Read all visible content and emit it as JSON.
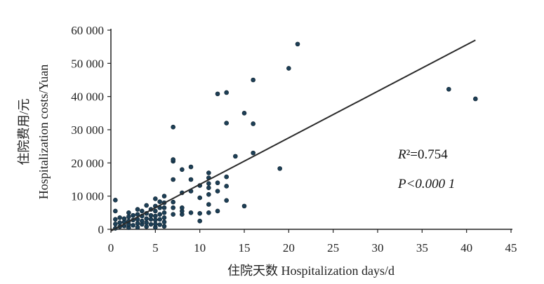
{
  "chart_data": {
    "type": "scatter",
    "title": "",
    "xlabel": "住院天数 Hospitalization days/d",
    "ylabel_cn": "住院费用/元",
    "ylabel_en": "Hospitalization costs/Yuan",
    "xlim": [
      0,
      45
    ],
    "ylim": [
      0,
      60000
    ],
    "x_ticks": [
      0,
      5,
      10,
      15,
      20,
      25,
      30,
      35,
      40,
      45
    ],
    "y_ticks": [
      0,
      10000,
      20000,
      30000,
      40000,
      50000,
      60000
    ],
    "x_tick_labels": [
      "0",
      "5",
      "10",
      "15",
      "20",
      "25",
      "30",
      "35",
      "40",
      "45"
    ],
    "y_tick_labels": [
      "0",
      "10 000",
      "20 000",
      "30 000",
      "40 000",
      "50 000",
      "60 000"
    ],
    "grid": false,
    "annotations": {
      "r2_label": "R²=0.754",
      "p_label": "P<0.000 1"
    },
    "fit_line": {
      "x": [
        0,
        41
      ],
      "y": [
        -500,
        57000
      ]
    },
    "points": [
      [
        0.5,
        300
      ],
      [
        0.5,
        1600
      ],
      [
        0.5,
        3000
      ],
      [
        0.5,
        5500
      ],
      [
        0.5,
        8800
      ],
      [
        1,
        800
      ],
      [
        1,
        2000
      ],
      [
        1,
        3500
      ],
      [
        1.5,
        1000
      ],
      [
        1.5,
        2200
      ],
      [
        1.5,
        3200
      ],
      [
        2,
        500
      ],
      [
        2,
        1500
      ],
      [
        2,
        2500
      ],
      [
        2,
        3800
      ],
      [
        2,
        5000
      ],
      [
        2.5,
        1200
      ],
      [
        2.5,
        2800
      ],
      [
        2.5,
        4200
      ],
      [
        3,
        600
      ],
      [
        3,
        1800
      ],
      [
        3,
        3000
      ],
      [
        3,
        4500
      ],
      [
        3,
        6000
      ],
      [
        3.5,
        1500
      ],
      [
        3.5,
        2500
      ],
      [
        3.5,
        4000
      ],
      [
        3.5,
        5500
      ],
      [
        4,
        800
      ],
      [
        4,
        2000
      ],
      [
        4,
        3200
      ],
      [
        4,
        4800
      ],
      [
        4,
        7200
      ],
      [
        4.5,
        1500
      ],
      [
        4.5,
        3000
      ],
      [
        4.5,
        4200
      ],
      [
        4.5,
        6000
      ],
      [
        5,
        600
      ],
      [
        5,
        1600
      ],
      [
        5,
        2800
      ],
      [
        5,
        4000
      ],
      [
        5,
        5500
      ],
      [
        5,
        7000
      ],
      [
        5,
        9200
      ],
      [
        5.5,
        1400
      ],
      [
        5.5,
        3000
      ],
      [
        5.5,
        4500
      ],
      [
        5.5,
        6500
      ],
      [
        5.5,
        8300
      ],
      [
        6,
        900
      ],
      [
        6,
        2200
      ],
      [
        6,
        3500
      ],
      [
        6,
        5000
      ],
      [
        6,
        6500
      ],
      [
        6,
        8000
      ],
      [
        6,
        10000
      ],
      [
        7,
        4500
      ],
      [
        7,
        6500
      ],
      [
        7,
        8200
      ],
      [
        7,
        15000
      ],
      [
        7,
        20500
      ],
      [
        7,
        21000
      ],
      [
        7,
        30800
      ],
      [
        8,
        4500
      ],
      [
        8,
        5500
      ],
      [
        8,
        6500
      ],
      [
        8,
        11000
      ],
      [
        8,
        18000
      ],
      [
        9,
        5000
      ],
      [
        9,
        11500
      ],
      [
        9,
        15000
      ],
      [
        9,
        18800
      ],
      [
        10,
        2500
      ],
      [
        10,
        4800
      ],
      [
        10,
        9500
      ],
      [
        10,
        13200
      ],
      [
        11,
        5000
      ],
      [
        11,
        7500
      ],
      [
        11,
        10500
      ],
      [
        11,
        12500
      ],
      [
        11,
        13800
      ],
      [
        11,
        15500
      ],
      [
        11,
        17000
      ],
      [
        12,
        5500
      ],
      [
        12,
        11500
      ],
      [
        12,
        14000
      ],
      [
        12,
        40800
      ],
      [
        13,
        8700
      ],
      [
        13,
        13000
      ],
      [
        13,
        15800
      ],
      [
        13,
        32000
      ],
      [
        13,
        41200
      ],
      [
        14,
        22000
      ],
      [
        15,
        7000
      ],
      [
        15,
        35000
      ],
      [
        16,
        23000
      ],
      [
        16,
        31800
      ],
      [
        16,
        45000
      ],
      [
        19,
        18300
      ],
      [
        20,
        48500
      ],
      [
        21,
        55800
      ],
      [
        38,
        42200
      ],
      [
        41,
        39300
      ]
    ]
  }
}
